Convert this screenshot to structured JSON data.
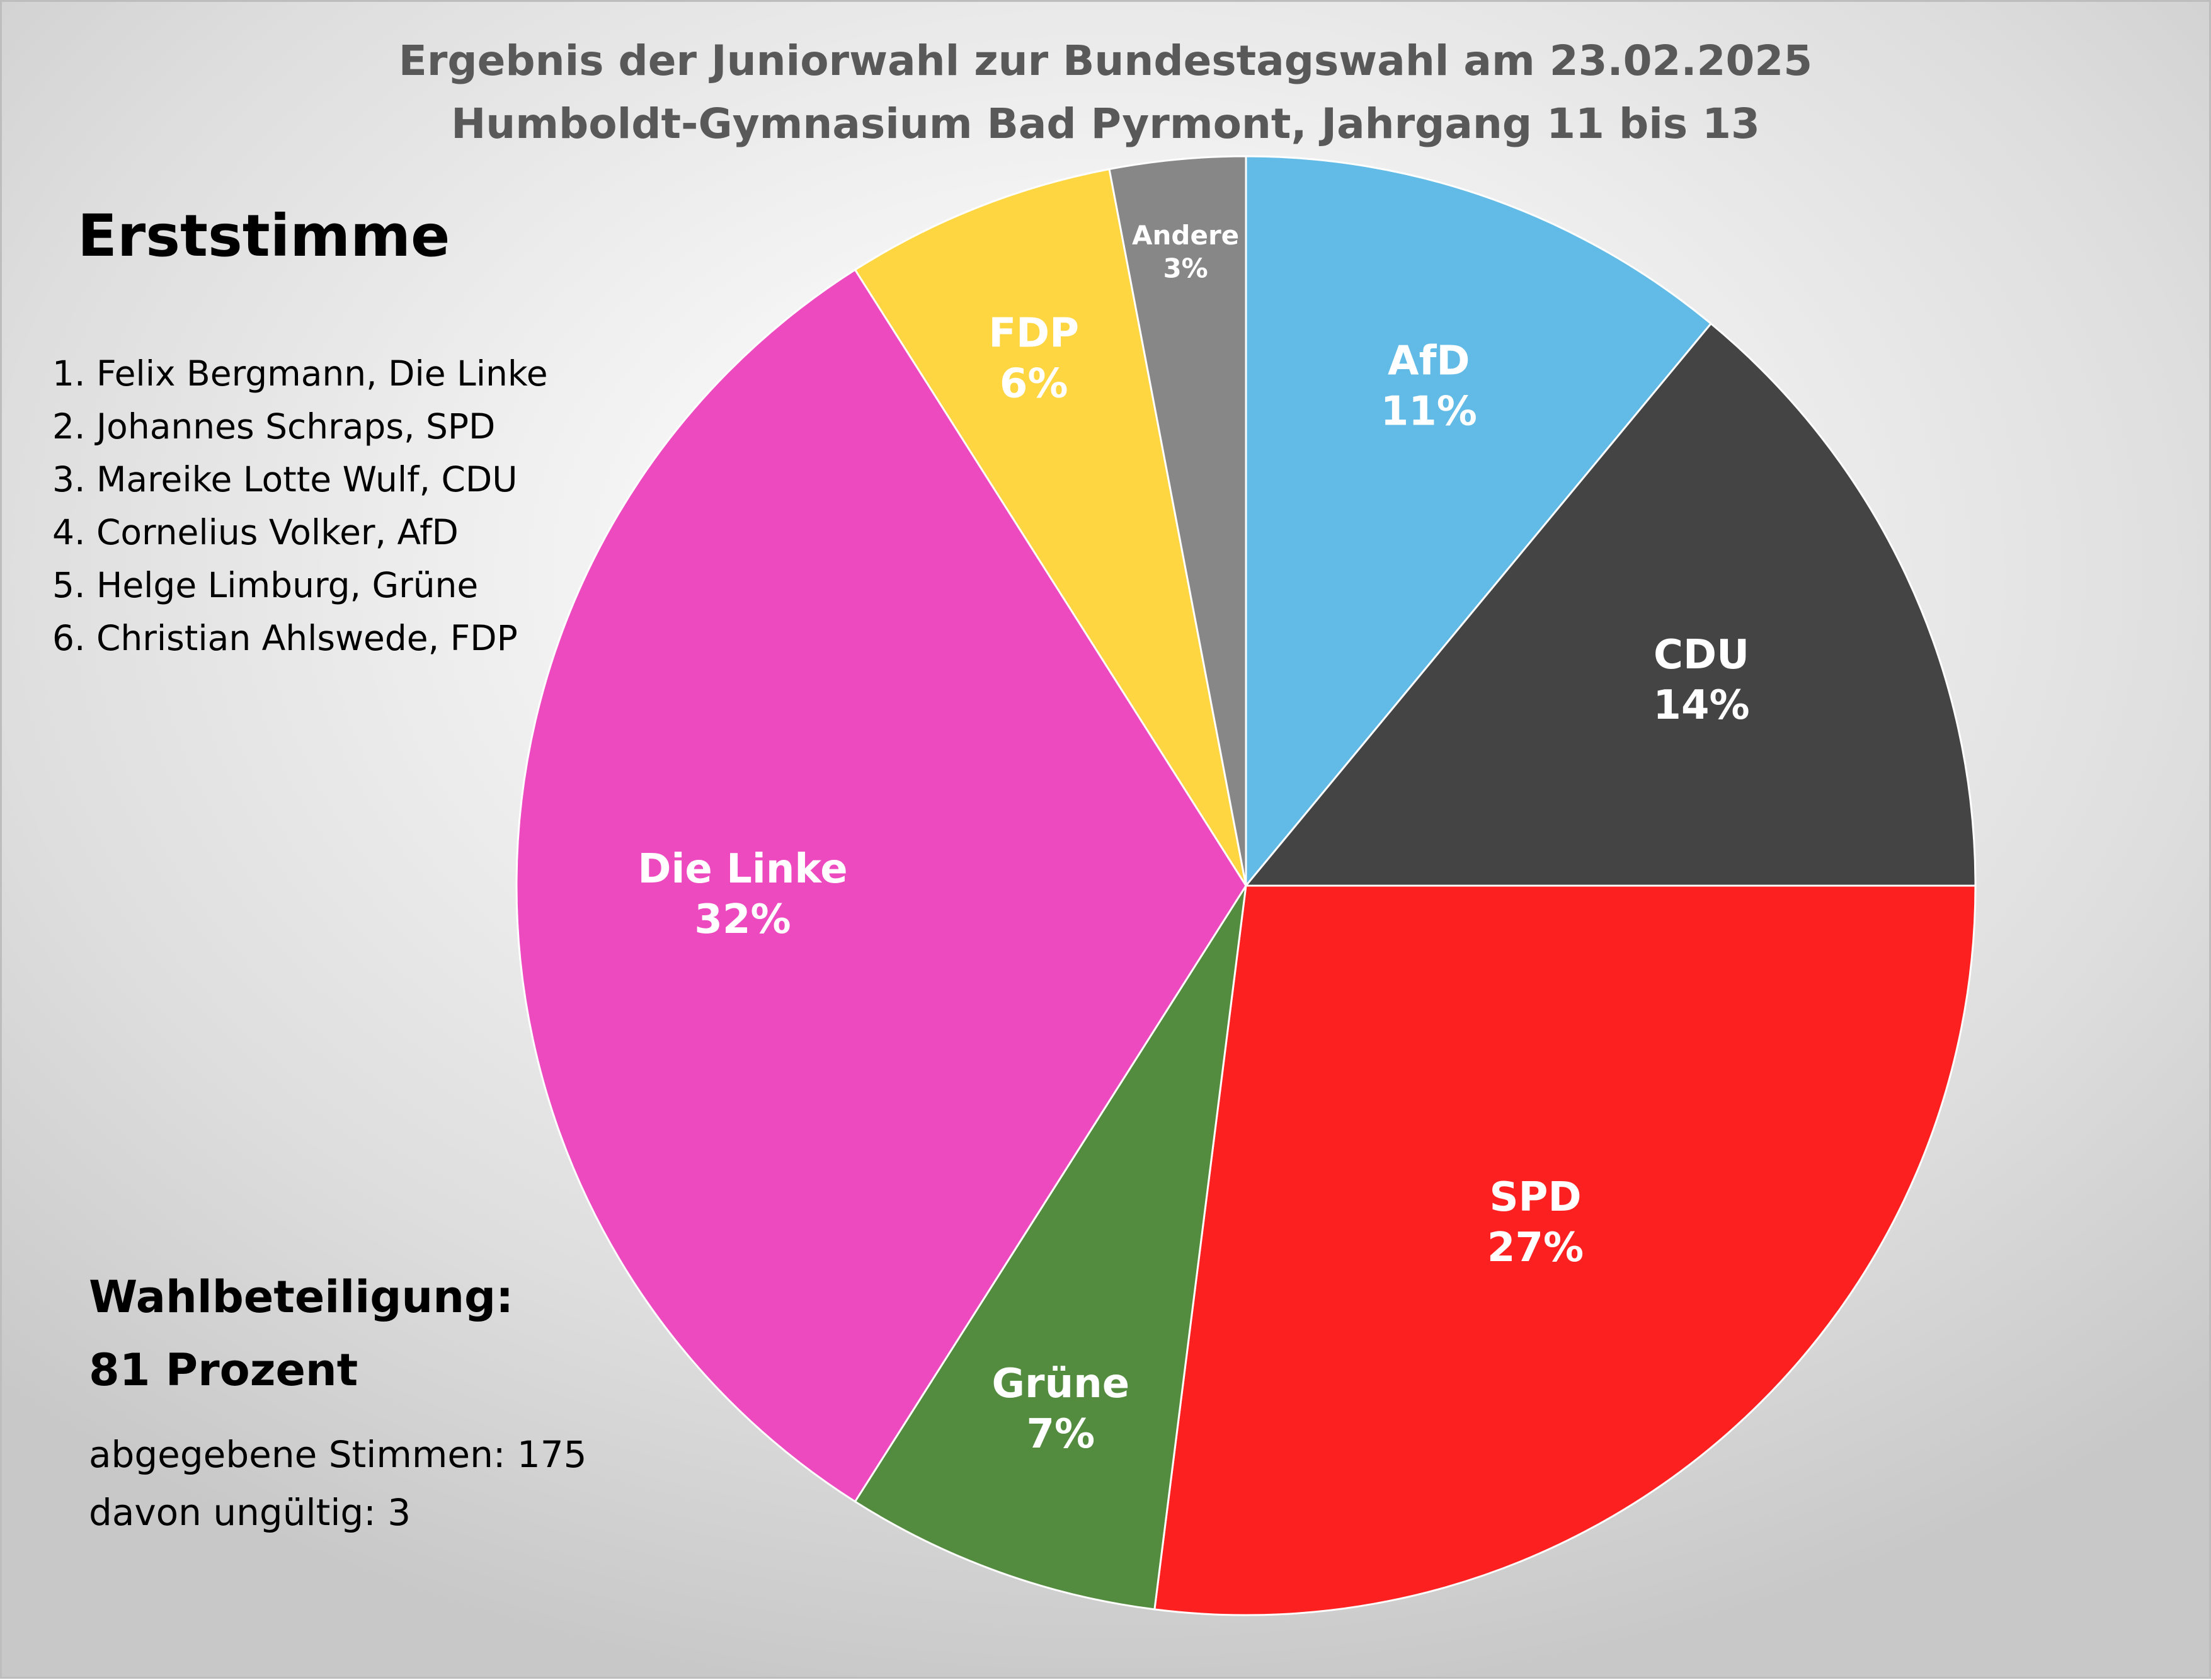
{
  "header": {
    "title_line1": "Ergebnis der Juniorwahl zur Bundestagswahl am 23.02.2025",
    "title_line2": "Humboldt-Gymnasium Bad Pyrmont, Jahrgang 11 bis 13",
    "subtitle": "Erststimme"
  },
  "candidates": [
    "1. Felix Bergmann, Die Linke",
    "2. Johannes Schraps, SPD",
    "3. Mareike Lotte Wulf, CDU",
    "4.  Cornelius Volker, AfD",
    "5. Helge Limburg, Grüne",
    "6. Christian Ahlswede, FDP"
  ],
  "turnout": {
    "label": "Wahlbeteiligung:",
    "value": "81 Prozent"
  },
  "votes": {
    "cast": "abgegebene Stimmen: 175",
    "invalid": "davon ungültig: 3"
  },
  "chart_data": {
    "type": "pie",
    "title": "Ergebnis der Juniorwahl zur Bundestagswahl am 23.02.2025",
    "subtitle": "Humboldt-Gymnasium Bad Pyrmont, Jahrgang 11 bis 13",
    "start": "12 o'clock, clockwise",
    "slices": [
      {
        "label": "AfD",
        "value": 11,
        "display": "11%",
        "color": "#61bbe6"
      },
      {
        "label": "CDU",
        "value": 14,
        "display": "14%",
        "color": "#444444"
      },
      {
        "label": "SPD",
        "value": 27,
        "display": "27%",
        "color": "#fc2020"
      },
      {
        "label": "Grüne",
        "value": 7,
        "display": "7%",
        "color": "#538b3f"
      },
      {
        "label": "Die Linke",
        "value": 32,
        "display": "32%",
        "color": "#ed4abf"
      },
      {
        "label": "FDP",
        "value": 6,
        "display": "6%",
        "color": "#fdd642"
      },
      {
        "label": "Andere",
        "value": 3,
        "display": "3%",
        "color": "#878787"
      }
    ]
  }
}
